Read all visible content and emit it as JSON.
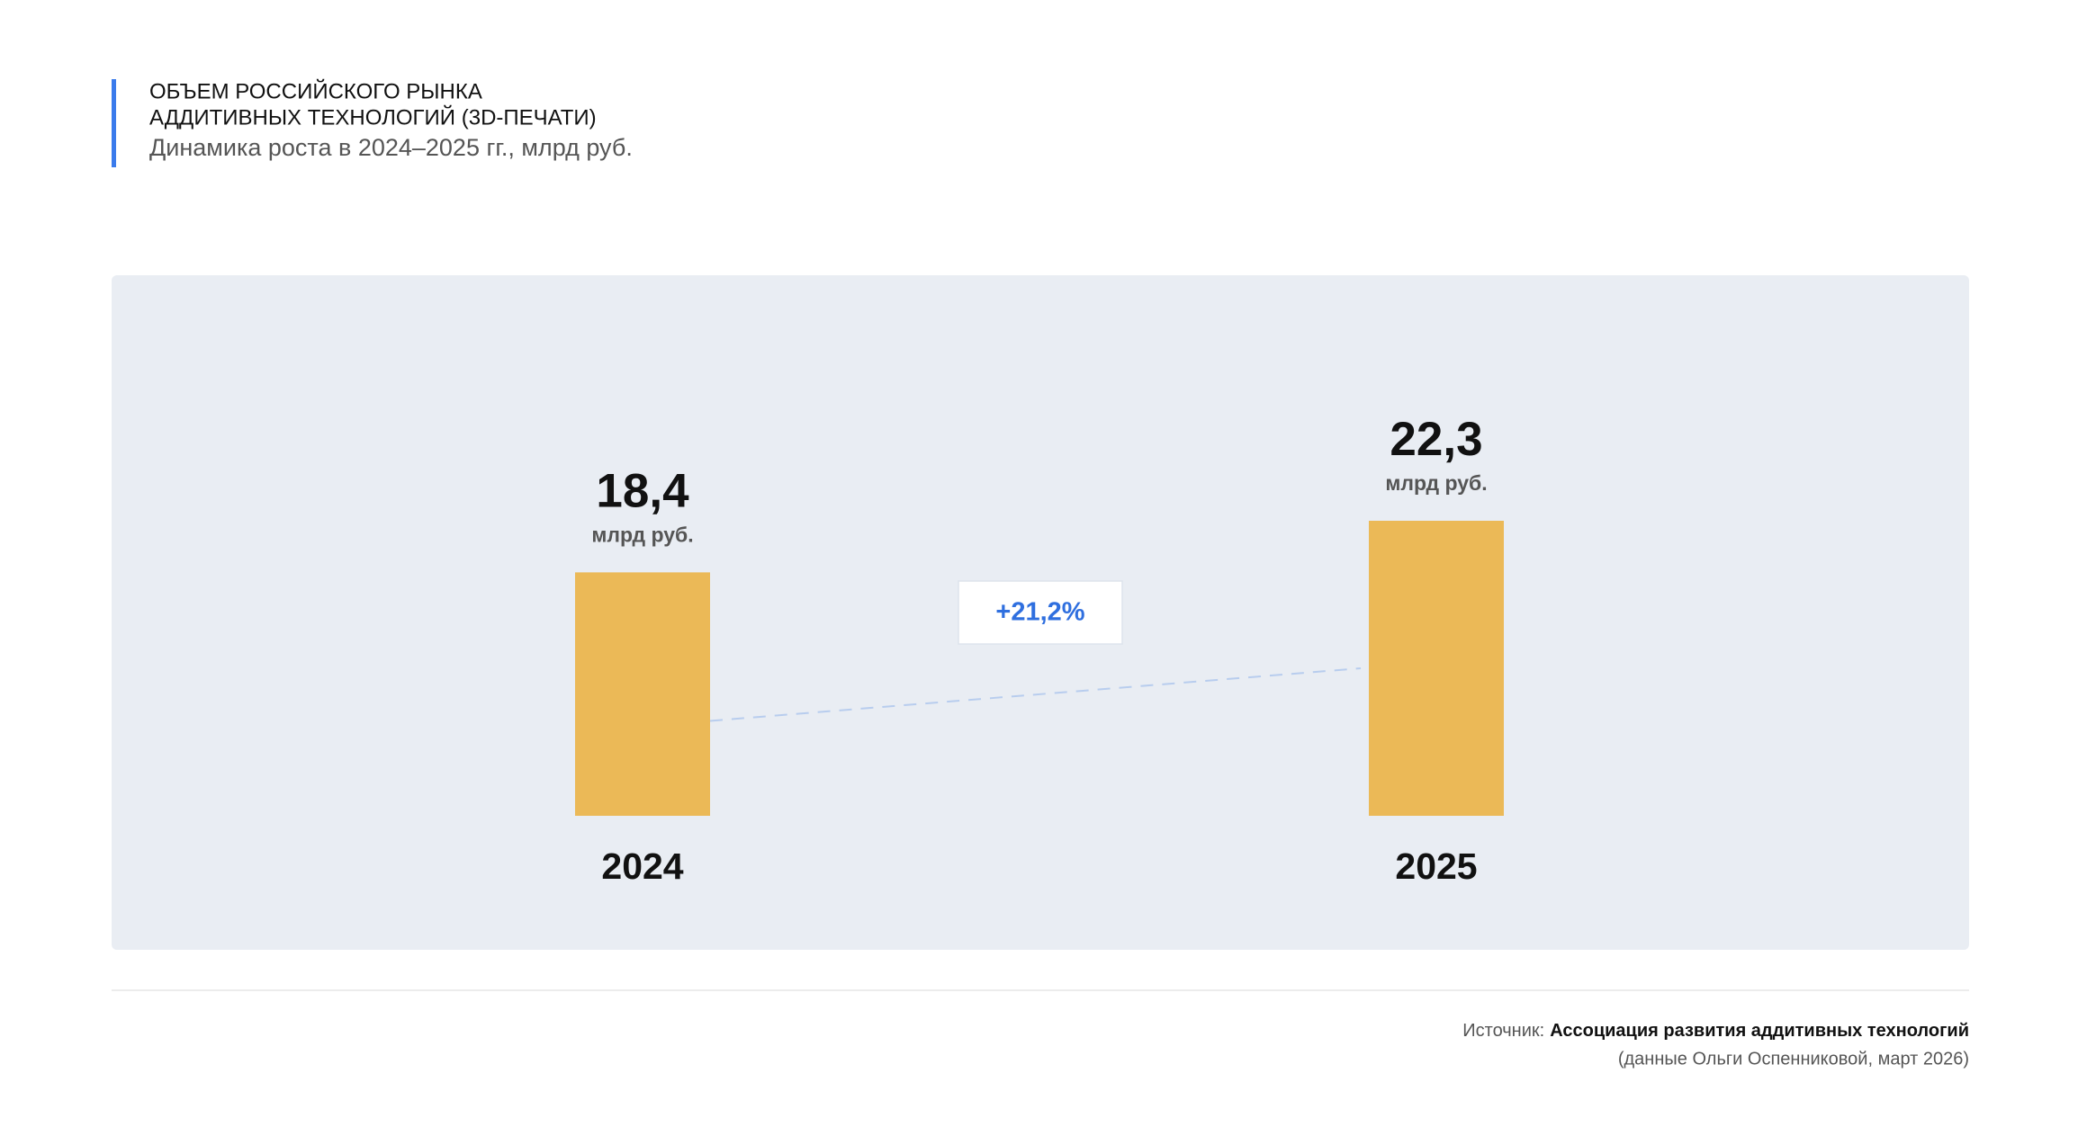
{
  "chart_data": {
    "type": "bar",
    "title": [
      "ОБЪЕМ РОССИЙСКОГО РЫНКА",
      "АДДИТИВНЫХ ТЕХНОЛОГИЙ (3D-ПЕЧАТИ)"
    ],
    "subtitle": "Динамика роста в 2024–2025 гг., млрд руб.",
    "categories": [
      "2024",
      "2025"
    ],
    "values": [
      18.4,
      22.3
    ],
    "value_labels": [
      "18,4",
      "22,3"
    ],
    "unit": "млрд руб.",
    "color": "#ebb957",
    "annotation": "+21,2%"
  },
  "footer": {
    "source_label": "Источник:",
    "source": "Ассоциация развития аддитивных технологий",
    "note": "(данные Ольги Оспенниковой, март 2026)"
  }
}
